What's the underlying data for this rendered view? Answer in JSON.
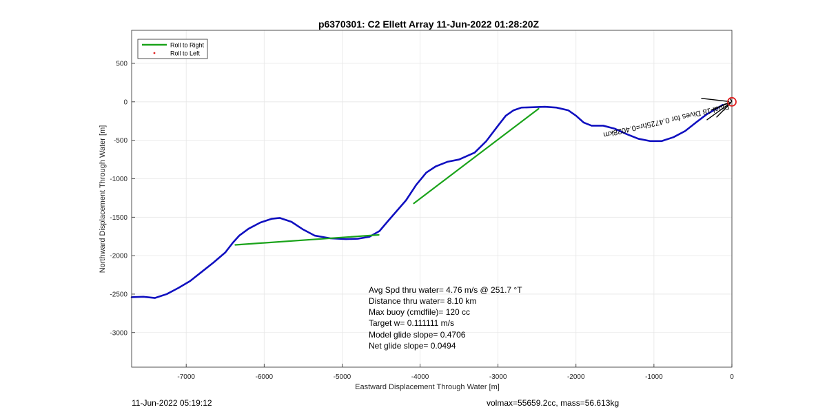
{
  "chart_data": {
    "type": "line",
    "title": "p6370301: C2 Ellett Array 11-Jun-2022 01:28:20Z",
    "xlabel": "Eastward Displacement Through Water [m]",
    "ylabel": "Northward Displacement Through Water [m]",
    "xlim": [
      -7700,
      0
    ],
    "ylim": [
      -3450,
      930
    ],
    "xticks": [
      -7000,
      -6000,
      -5000,
      -4000,
      -3000,
      -2000,
      -1000,
      0
    ],
    "yticks": [
      -3000,
      -2500,
      -2000,
      -1500,
      -1000,
      -500,
      0,
      500
    ],
    "grid": true,
    "legend_position": "top-left",
    "series": [
      {
        "name": "Roll to Right",
        "color": "#1aa31a",
        "style": "line",
        "segments": [
          [
            [
              -6370,
              -1860
            ],
            [
              -4530,
              -1730
            ]
          ],
          [
            [
              -4080,
              -1320
            ],
            [
              -2480,
              -90
            ]
          ]
        ]
      },
      {
        "name": "Roll to Left",
        "color": "#e02020",
        "style": "marker",
        "segments": []
      },
      {
        "name": "",
        "color": "#1010c0",
        "style": "line",
        "x": [
          -7700,
          -7550,
          -7400,
          -7250,
          -7100,
          -6950,
          -6800,
          -6650,
          -6500,
          -6400,
          -6320,
          -6200,
          -6050,
          -5900,
          -5800,
          -5650,
          -5500,
          -5350,
          -5150,
          -4950,
          -4800,
          -4650,
          -4520,
          -4420,
          -4300,
          -4180,
          -4050,
          -3920,
          -3800,
          -3650,
          -3500,
          -3300,
          -3150,
          -3000,
          -2900,
          -2800,
          -2700,
          -2550,
          -2400,
          -2250,
          -2100,
          -2000,
          -1900,
          -1800,
          -1650,
          -1500,
          -1350,
          -1200,
          -1050,
          -900,
          -750,
          -600,
          -450,
          -320,
          -200,
          -120
        ],
        "y": [
          -2540,
          -2535,
          -2550,
          -2500,
          -2420,
          -2330,
          -2210,
          -2090,
          -1960,
          -1830,
          -1740,
          -1650,
          -1570,
          -1520,
          -1510,
          -1560,
          -1660,
          -1740,
          -1775,
          -1785,
          -1780,
          -1755,
          -1680,
          -1560,
          -1420,
          -1280,
          -1080,
          -920,
          -840,
          -780,
          -750,
          -660,
          -510,
          -310,
          -180,
          -110,
          -75,
          -70,
          -65,
          -75,
          -110,
          -180,
          -270,
          -310,
          -310,
          -350,
          -420,
          -480,
          -510,
          -510,
          -460,
          -380,
          -260,
          -160,
          -90,
          -40
        ]
      }
    ],
    "annotations": [
      "Avg Spd thru water=  4.76 m/s @ 251.7 °T",
      "Distance thru water=  8.10 km",
      "Max buoy (cmdfile)= 120 cc",
      "Target w= 0.111111 m/s",
      "Model glide slope= 0.4706",
      "Net glide slope= 0.0494"
    ],
    "rotated_label": "Final 18 Dives for 0.4725hr=0.4028km",
    "end_marker": {
      "x": 0,
      "y": 0,
      "color": "#e02020"
    }
  },
  "footer": {
    "left": "11-Jun-2022 05:19:12",
    "right": "volmax=55659.2cc, mass=56.613kg"
  },
  "colors": {
    "trajectory": "#1010c0",
    "roll_right": "#1aa31a",
    "roll_left": "#e02020",
    "grid": "#e6e6e6",
    "axes": "#262626"
  }
}
